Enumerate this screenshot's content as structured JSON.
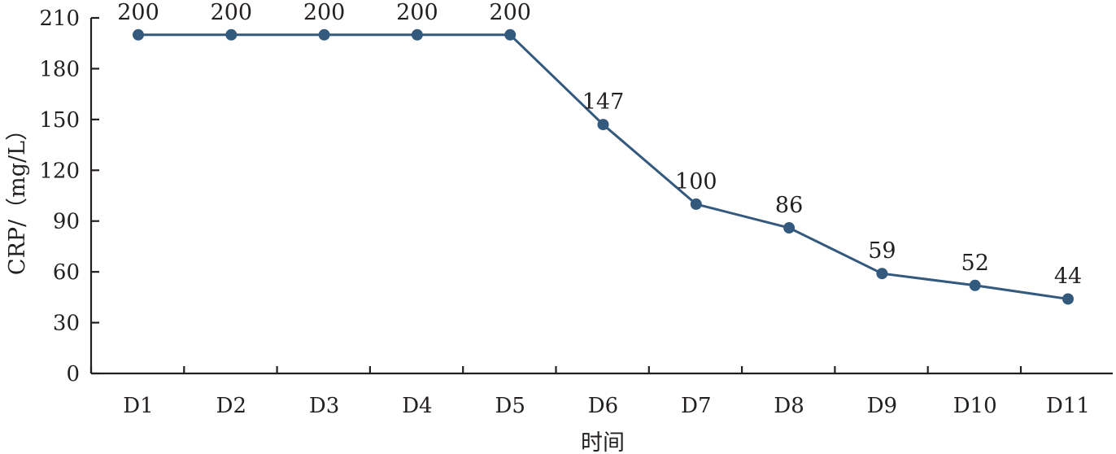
{
  "chart_data": {
    "type": "line",
    "title": "",
    "xlabel": "时间",
    "ylabel": "CRP/（mg/L）",
    "categories": [
      "D1",
      "D2",
      "D3",
      "D4",
      "D5",
      "D6",
      "D7",
      "D8",
      "D9",
      "D10",
      "D11"
    ],
    "series": [
      {
        "values": [
          200,
          200,
          200,
          200,
          200,
          147,
          100,
          86,
          59,
          52,
          44
        ]
      }
    ],
    "data_labels": [
      "200",
      "200",
      "200",
      "200",
      "200",
      "147",
      "100",
      "86",
      "59",
      "52",
      "44"
    ],
    "ylim": [
      0,
      210
    ],
    "yticks": [
      0,
      30,
      60,
      90,
      120,
      150,
      180,
      210
    ],
    "grid": false,
    "legend": "none",
    "colors": {
      "line": "#33597d",
      "axis": "#231f20"
    }
  }
}
